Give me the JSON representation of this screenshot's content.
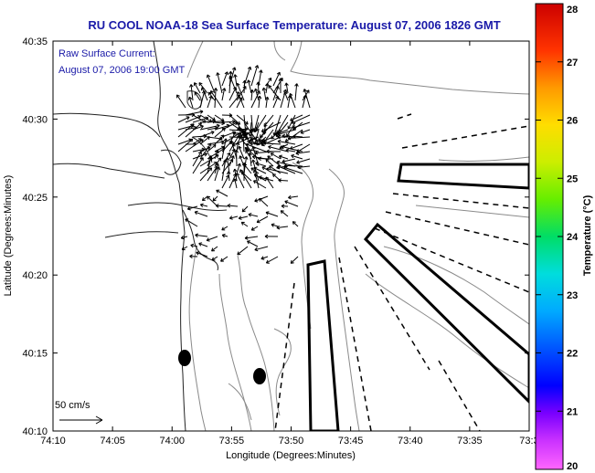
{
  "title": "RU COOL  NOAA-18  Sea Surface Temperature:  August 07, 2006 1826 GMT",
  "current_label": {
    "line1": "Raw Surface Current:",
    "line2": "August 07, 2006 19:00 GMT"
  },
  "scale_label": "50 cm/s",
  "axes": {
    "xlabel": "Longitude (Degrees:Minutes)",
    "ylabel": "Latitude (Degrees:Minutes)",
    "xticks": [
      "74:10",
      "74:05",
      "74:00",
      "73:55",
      "73:50",
      "73:45",
      "73:40",
      "73:35",
      "73:3"
    ],
    "yticks": [
      "40:35",
      "40:30",
      "40:25",
      "40:20",
      "40:15",
      "40:10"
    ]
  },
  "colorbar": {
    "label": "Temperature (°C)",
    "ticks": [
      "28",
      "27",
      "26",
      "25",
      "24",
      "23",
      "22",
      "21",
      "20"
    ],
    "min": 20,
    "max": 28
  },
  "colors": {
    "title": "#1a1aa8",
    "coast": "#222222",
    "bathymetry": "#888888",
    "arrows": "#000000"
  }
}
